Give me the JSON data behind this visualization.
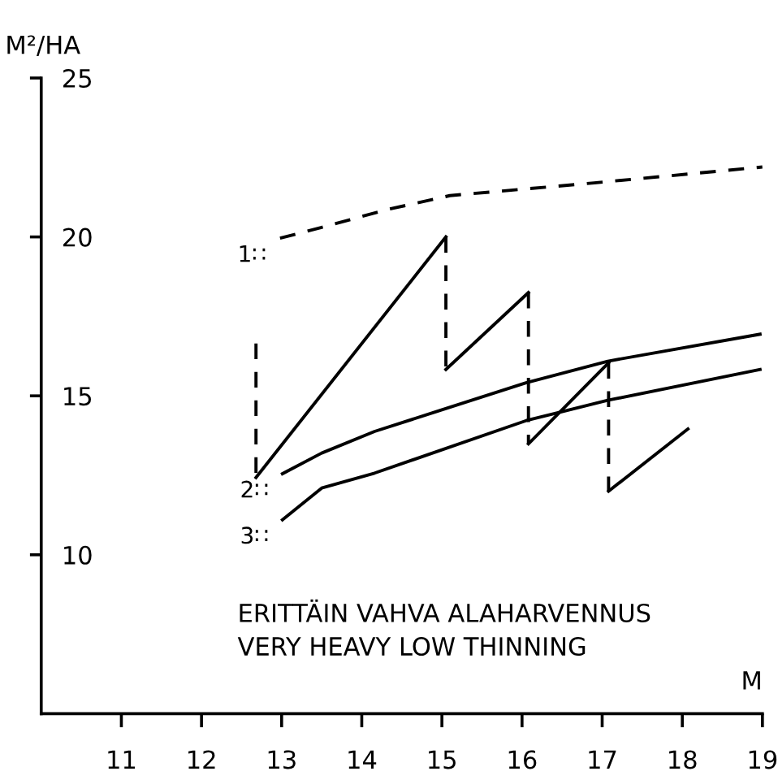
{
  "chart_data": {
    "type": "line",
    "xlabel": "M",
    "ylabel": "M²/HA",
    "xlim": [
      10,
      19
    ],
    "ylim": [
      5,
      25
    ],
    "xticks": [
      11,
      12,
      13,
      14,
      15,
      16,
      17,
      18,
      19
    ],
    "yticks": [
      10,
      15,
      20,
      25
    ],
    "grid": false,
    "legend": false,
    "marker": "none",
    "series": [
      {
        "color": "#000000",
        "line_style": "dashed",
        "x": [
          12.98,
          13.5,
          14.3,
          15.1,
          16.9,
          19.0
        ],
        "values": [
          19.96,
          20.3,
          20.85,
          21.3,
          21.7,
          22.2
        ]
      },
      {
        "color": "#000000",
        "line_style": "solid",
        "x": [
          13.01,
          13.5,
          14.16,
          15.0,
          16.05,
          17.07,
          18.97
        ],
        "values": [
          12.55,
          13.2,
          13.88,
          14.56,
          15.41,
          16.09,
          16.94
        ]
      },
      {
        "color": "#000000",
        "line_style": "solid",
        "x": [
          13.01,
          13.5,
          14.16,
          16.05,
          17.07,
          18.97
        ],
        "values": [
          11.1,
          12.1,
          12.57,
          14.22,
          14.86,
          15.83
        ]
      },
      {
        "color": "#000000",
        "line_style": "solid",
        "x": [
          12.68,
          15.05
        ],
        "values": [
          12.43,
          20.0
        ]
      },
      {
        "color": "#000000",
        "line_style": "solid",
        "x": [
          15.05,
          16.08
        ],
        "values": [
          15.83,
          18.25
        ]
      },
      {
        "color": "#000000",
        "line_style": "solid",
        "x": [
          16.08,
          17.08
        ],
        "values": [
          13.49,
          16.04
        ]
      },
      {
        "color": "#000000",
        "line_style": "solid",
        "x": [
          17.08,
          18.07
        ],
        "values": [
          12.0,
          13.96
        ]
      },
      {
        "color": "#000000",
        "line_style": "dashed",
        "x": [
          12.68,
          12.68
        ],
        "values": [
          16.65,
          12.43
        ]
      },
      {
        "color": "#000000",
        "line_style": "dashed",
        "x": [
          15.05,
          15.05
        ],
        "values": [
          20.0,
          15.83
        ]
      },
      {
        "color": "#000000",
        "line_style": "dashed",
        "x": [
          16.08,
          16.08
        ],
        "values": [
          18.25,
          13.49
        ]
      },
      {
        "color": "#000000",
        "line_style": "dashed",
        "x": [
          17.08,
          17.08
        ],
        "values": [
          16.04,
          12.0
        ]
      }
    ],
    "annotations": [
      "1∷",
      "2∷",
      "3∷",
      "ERITTÄIN VAHVA ALAHARVENNUS",
      "VERY HEAVY LOW THINNING"
    ]
  }
}
